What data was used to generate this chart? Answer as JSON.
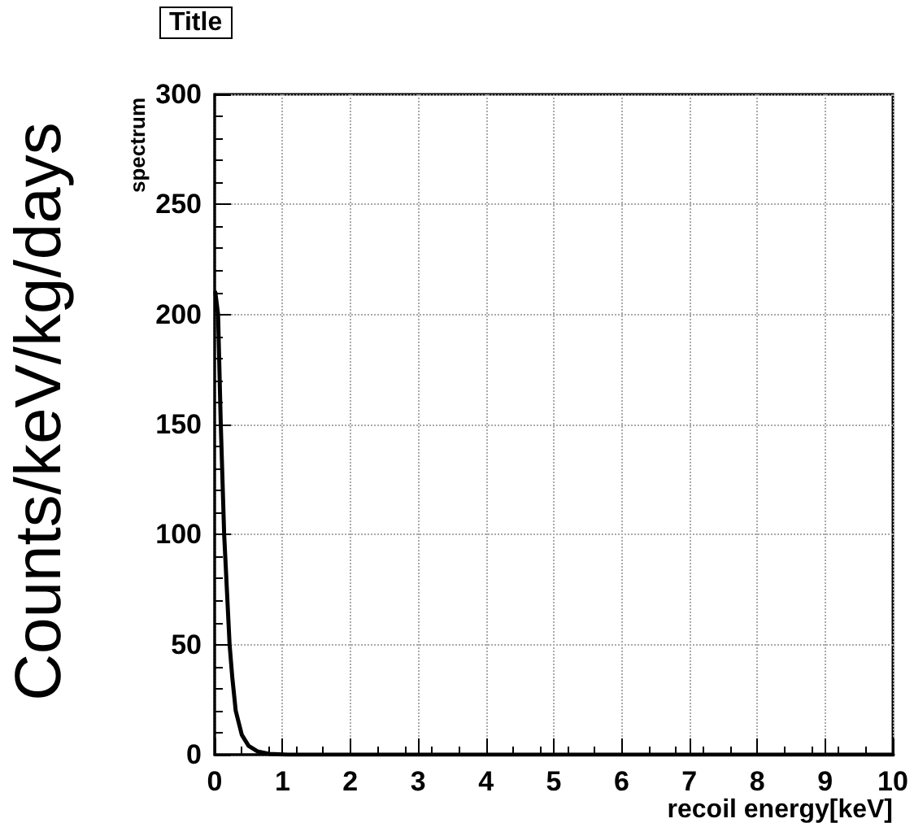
{
  "chart_data": {
    "type": "line",
    "title": "Title",
    "xlabel": "recoil energy[keV]",
    "ylabel": "spectrum",
    "annotations": [
      "Counts/keV/kg/days"
    ],
    "x": [
      0.01,
      0.05,
      0.09,
      0.14,
      0.22,
      0.26,
      0.31,
      0.4,
      0.5,
      0.63,
      0.8,
      1.08,
      10
    ],
    "series": [
      {
        "color": "#000000",
        "values": [
          210,
          200,
          150,
          100,
          50,
          35,
          20,
          9,
          4,
          1.5,
          0.4,
          0,
          0
        ]
      }
    ],
    "xlim": [
      0,
      10
    ],
    "xticks": [
      0,
      1,
      2,
      3,
      4,
      5,
      6,
      7,
      8,
      9,
      10
    ],
    "ylim": [
      0,
      300
    ],
    "yticks": [
      0,
      50,
      100,
      150,
      200,
      250,
      300
    ],
    "grid": true,
    "marker": "none",
    "line_style": "solid"
  }
}
